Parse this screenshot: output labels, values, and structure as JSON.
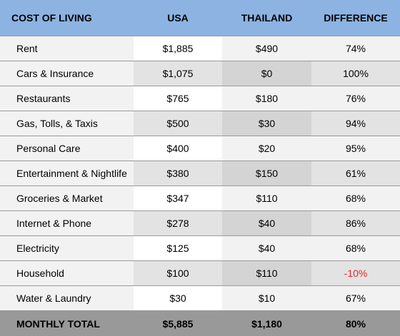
{
  "header": {
    "category": "COST OF LIVING",
    "usa": "USA",
    "thailand": "THAILAND",
    "difference": "DIFFERENCE"
  },
  "rows": [
    {
      "item": "Rent",
      "usa": "$1,885",
      "thailand": "$490",
      "difference": "74%"
    },
    {
      "item": "Cars & Insurance",
      "usa": "$1,075",
      "thailand": "$0",
      "difference": "100%"
    },
    {
      "item": "Restaurants",
      "usa": "$765",
      "thailand": "$180",
      "difference": "76%"
    },
    {
      "item": "Gas, Tolls, & Taxis",
      "usa": "$500",
      "thailand": "$30",
      "difference": "94%"
    },
    {
      "item": "Personal Care",
      "usa": "$400",
      "thailand": "$20",
      "difference": "95%"
    },
    {
      "item": "Entertainment & Nightlife",
      "usa": "$380",
      "thailand": "$150",
      "difference": "61%"
    },
    {
      "item": "Groceries & Market",
      "usa": "$347",
      "thailand": "$110",
      "difference": "68%"
    },
    {
      "item": "Internet & Phone",
      "usa": "$278",
      "thailand": "$40",
      "difference": "86%"
    },
    {
      "item": "Electricity",
      "usa": "$125",
      "thailand": "$40",
      "difference": "68%"
    },
    {
      "item": "Household",
      "usa": "$100",
      "thailand": "$110",
      "difference": "-10%",
      "negative": true
    },
    {
      "item": "Water & Laundry",
      "usa": "$30",
      "thailand": "$10",
      "difference": "67%"
    }
  ],
  "total": {
    "item": "MONTHLY TOTAL",
    "usa": "$5,885",
    "thailand": "$1,180",
    "difference": "80%"
  },
  "colors": {
    "header_bg": "#8db3e2",
    "total_bg": "#999999",
    "negative_text": "#e8262c"
  }
}
